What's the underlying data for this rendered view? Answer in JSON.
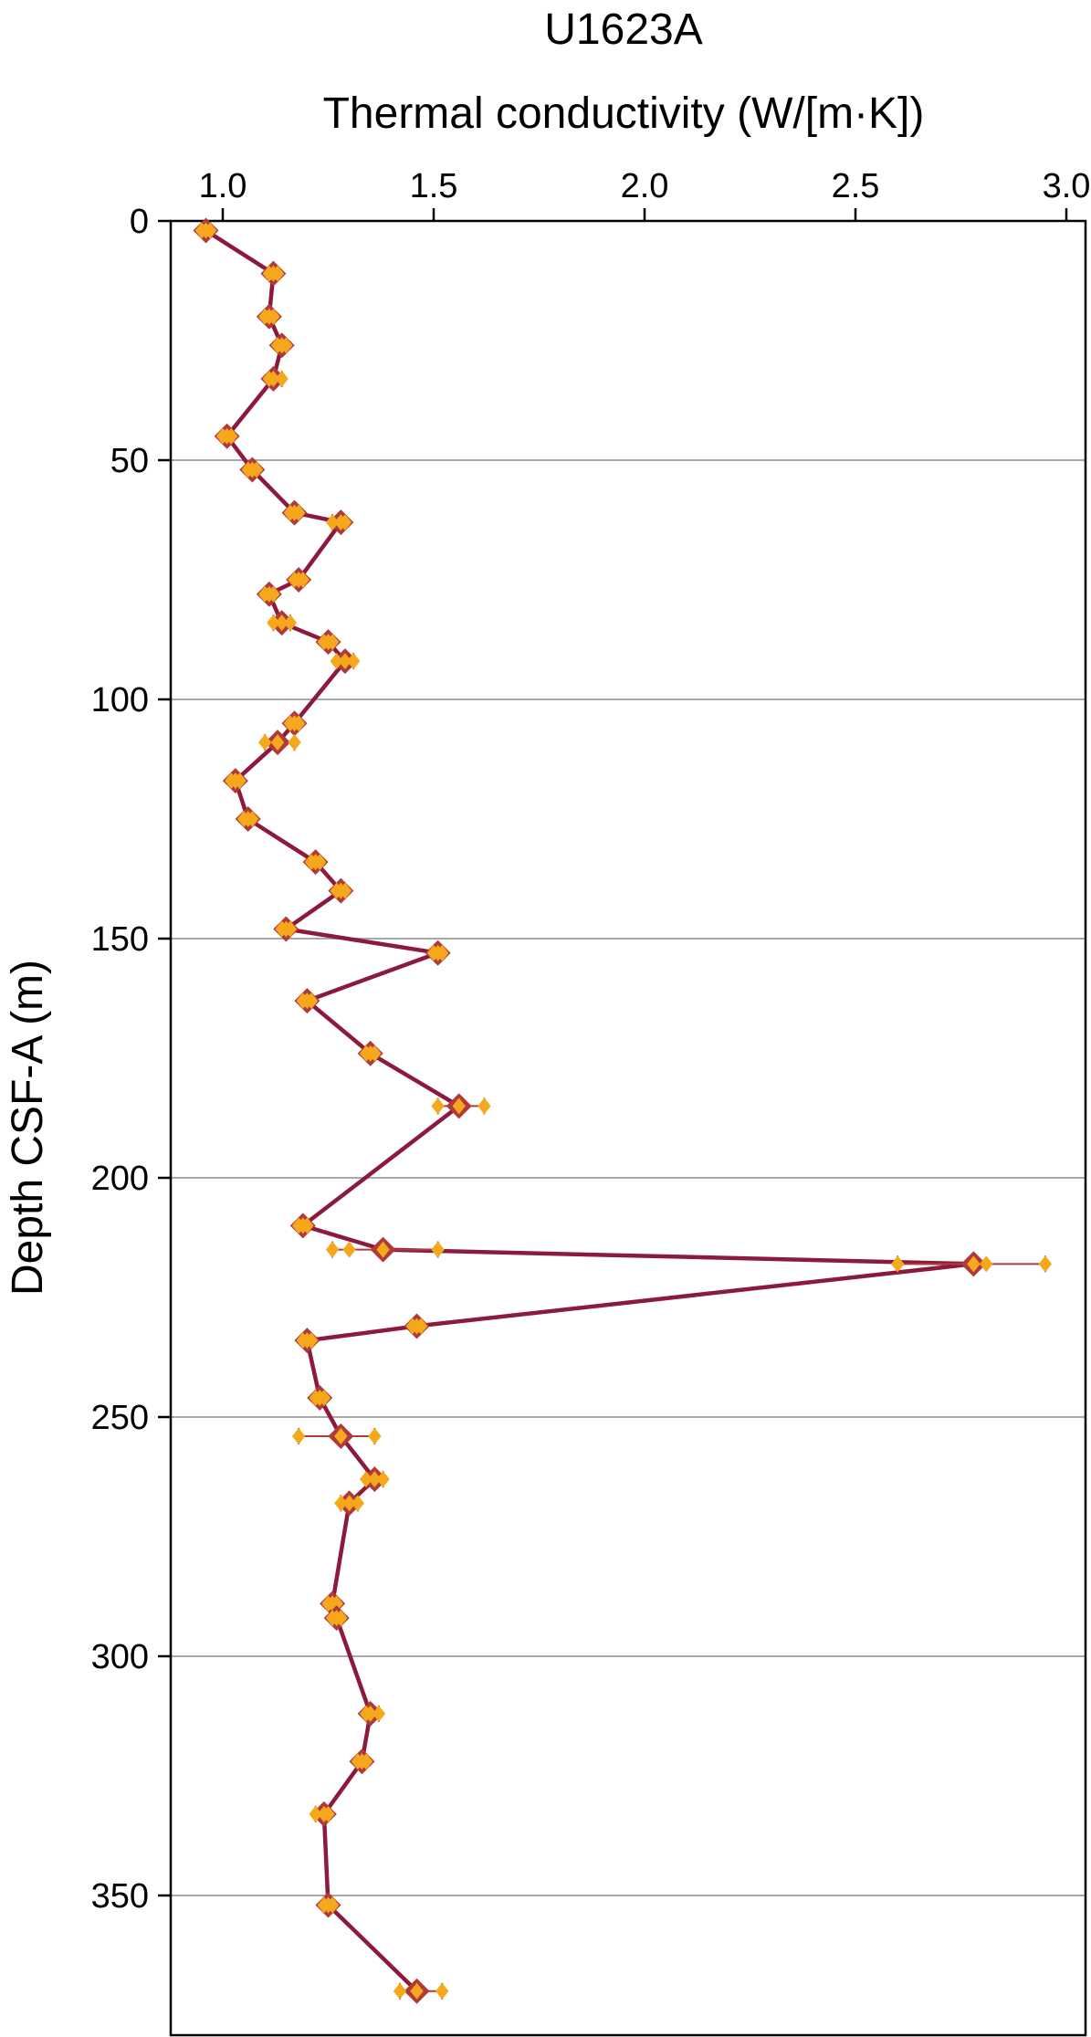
{
  "chart_data": {
    "type": "line",
    "title": "U1623A",
    "xlabel": "Thermal conductivity (W/[m·K])",
    "ylabel": "Depth CSF-A (m)",
    "x_axis_position": "top",
    "y_axis_inverted": true,
    "xlim": [
      0.85,
      3.05
    ],
    "ylim": [
      0,
      380
    ],
    "x_ticks": [
      1.0,
      1.5,
      2.0,
      2.5,
      3.0
    ],
    "x_tick_labels": [
      "1.0",
      "1.5",
      "2.0",
      "2.5",
      "3.0"
    ],
    "y_ticks": [
      0,
      50,
      100,
      150,
      200,
      250,
      300,
      350
    ],
    "y_tick_labels": [
      "0",
      "50",
      "100",
      "150",
      "200",
      "250",
      "300",
      "350"
    ],
    "grid": "horizontal",
    "colors": {
      "line": "#8b1a3c",
      "mean_marker": "#b03a3a",
      "measurement_marker": "#f5a81c"
    },
    "series": [
      {
        "marker": "diamond",
        "points": [
          {
            "x": 0.96,
            "y": 2,
            "measurements": [
              0.95,
              0.96,
              0.97
            ]
          },
          {
            "x": 1.12,
            "y": 11,
            "measurements": [
              1.11,
              1.12,
              1.13
            ]
          },
          {
            "x": 1.11,
            "y": 20,
            "measurements": [
              1.1,
              1.11,
              1.12
            ]
          },
          {
            "x": 1.14,
            "y": 26,
            "measurements": [
              1.13,
              1.14,
              1.15
            ]
          },
          {
            "x": 1.12,
            "y": 33,
            "measurements": [
              1.11,
              1.12,
              1.14
            ]
          },
          {
            "x": 1.01,
            "y": 45,
            "measurements": [
              1.0,
              1.01,
              1.02
            ]
          },
          {
            "x": 1.07,
            "y": 52,
            "measurements": [
              1.06,
              1.07,
              1.08
            ]
          },
          {
            "x": 1.17,
            "y": 61,
            "measurements": [
              1.16,
              1.17,
              1.18
            ]
          },
          {
            "x": 1.28,
            "y": 63,
            "measurements": [
              1.26,
              1.28,
              1.29
            ]
          },
          {
            "x": 1.18,
            "y": 75,
            "measurements": [
              1.17,
              1.18,
              1.19
            ]
          },
          {
            "x": 1.11,
            "y": 78,
            "measurements": [
              1.1,
              1.11,
              1.12
            ]
          },
          {
            "x": 1.14,
            "y": 84,
            "measurements": [
              1.12,
              1.14,
              1.16
            ]
          },
          {
            "x": 1.25,
            "y": 88,
            "measurements": [
              1.24,
              1.25,
              1.26
            ]
          },
          {
            "x": 1.29,
            "y": 92,
            "measurements": [
              1.27,
              1.29,
              1.31
            ]
          },
          {
            "x": 1.17,
            "y": 105,
            "measurements": [
              1.16,
              1.17,
              1.18
            ]
          },
          {
            "x": 1.13,
            "y": 109,
            "measurements": [
              1.1,
              1.13,
              1.17
            ]
          },
          {
            "x": 1.03,
            "y": 117,
            "measurements": [
              1.02,
              1.03,
              1.04
            ]
          },
          {
            "x": 1.06,
            "y": 125,
            "measurements": [
              1.05,
              1.06,
              1.07
            ]
          },
          {
            "x": 1.22,
            "y": 134,
            "measurements": [
              1.21,
              1.22,
              1.23
            ]
          },
          {
            "x": 1.28,
            "y": 140,
            "measurements": [
              1.27,
              1.28,
              1.29
            ]
          },
          {
            "x": 1.15,
            "y": 148,
            "measurements": [
              1.14,
              1.15,
              1.16
            ]
          },
          {
            "x": 1.51,
            "y": 153,
            "measurements": [
              1.5,
              1.51,
              1.52
            ]
          },
          {
            "x": 1.2,
            "y": 163,
            "measurements": [
              1.19,
              1.2,
              1.21
            ]
          },
          {
            "x": 1.35,
            "y": 174,
            "measurements": [
              1.34,
              1.35,
              1.36
            ]
          },
          {
            "x": 1.56,
            "y": 185,
            "measurements": [
              1.51,
              1.56,
              1.62
            ]
          },
          {
            "x": 1.19,
            "y": 210,
            "measurements": [
              1.18,
              1.19,
              1.2
            ]
          },
          {
            "x": 1.38,
            "y": 215,
            "measurements": [
              1.26,
              1.3,
              1.38,
              1.51
            ]
          },
          {
            "x": 2.78,
            "y": 218,
            "measurements": [
              2.6,
              2.78,
              2.81,
              2.95
            ]
          },
          {
            "x": 1.46,
            "y": 231,
            "measurements": [
              1.45,
              1.46,
              1.47
            ]
          },
          {
            "x": 1.2,
            "y": 234,
            "measurements": [
              1.19,
              1.2,
              1.21
            ]
          },
          {
            "x": 1.23,
            "y": 246,
            "measurements": [
              1.22,
              1.23,
              1.24
            ]
          },
          {
            "x": 1.28,
            "y": 254,
            "measurements": [
              1.18,
              1.28,
              1.36
            ]
          },
          {
            "x": 1.36,
            "y": 263,
            "measurements": [
              1.34,
              1.36,
              1.38
            ]
          },
          {
            "x": 1.3,
            "y": 268,
            "measurements": [
              1.28,
              1.3,
              1.32
            ]
          },
          {
            "x": 1.26,
            "y": 289,
            "measurements": [
              1.25,
              1.26,
              1.27
            ]
          },
          {
            "x": 1.27,
            "y": 292,
            "measurements": [
              1.26,
              1.27,
              1.28
            ]
          },
          {
            "x": 1.35,
            "y": 312,
            "measurements": [
              1.34,
              1.35,
              1.37
            ]
          },
          {
            "x": 1.33,
            "y": 322,
            "measurements": [
              1.32,
              1.33,
              1.34
            ]
          },
          {
            "x": 1.24,
            "y": 333,
            "measurements": [
              1.22,
              1.24,
              1.25
            ]
          },
          {
            "x": 1.25,
            "y": 352,
            "measurements": [
              1.24,
              1.25,
              1.26
            ]
          },
          {
            "x": 1.46,
            "y": 370,
            "measurements": [
              1.42,
              1.46,
              1.52
            ]
          }
        ]
      }
    ]
  }
}
